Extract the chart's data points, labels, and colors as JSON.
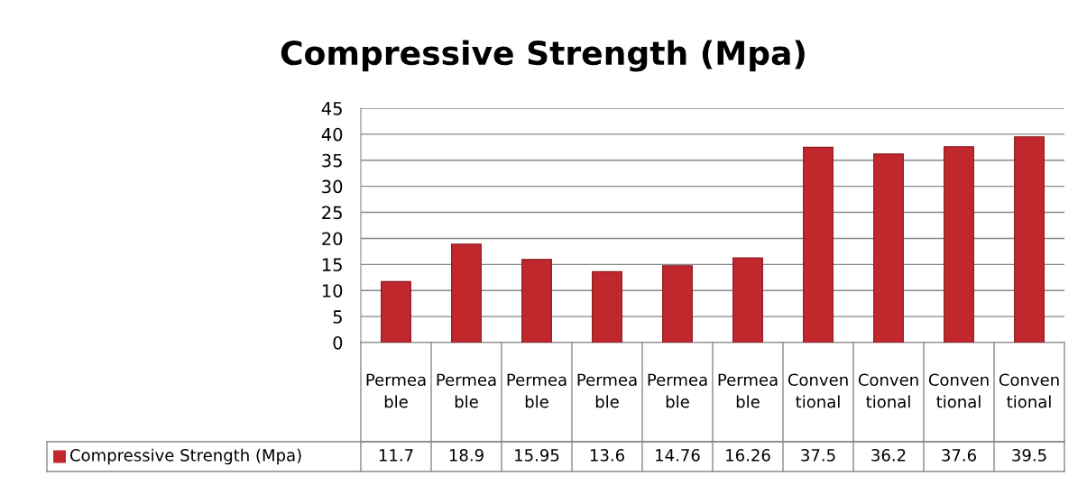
{
  "chart_data": {
    "type": "bar",
    "title": "Compressive Strength (Mpa)",
    "categories": [
      "Permeable",
      "Permeable",
      "Permeable",
      "Permeable",
      "Permeable",
      "Permeable",
      "Conventional",
      "Conventional",
      "Conventional",
      "Conventional"
    ],
    "series": [
      {
        "name": "Compressive Strength (Mpa)",
        "color": "#c0282d",
        "values": [
          11.7,
          18.9,
          15.95,
          13.6,
          14.76,
          16.26,
          37.5,
          36.2,
          37.6,
          39.5
        ]
      }
    ],
    "ylim": [
      0,
      45
    ],
    "yticks": [
      0,
      5,
      10,
      15,
      20,
      25,
      30,
      35,
      40,
      45
    ],
    "grid": "y",
    "data_labels": true
  }
}
